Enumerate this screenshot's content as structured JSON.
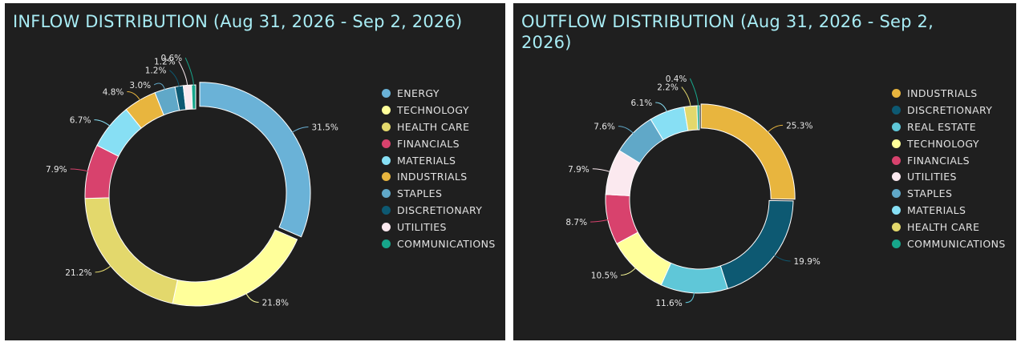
{
  "chart_data": [
    {
      "type": "pie",
      "donut": true,
      "title": "INFLOW DISTRIBUTION (Aug 31, 2026 - Sep 2, 2026)",
      "legend_position": "right",
      "slices": [
        {
          "name": "ENERGY",
          "value": 31.5,
          "label": "31.5%",
          "color": "#6ab2d7"
        },
        {
          "name": "TECHNOLOGY",
          "value": 21.8,
          "label": "21.8%",
          "color": "#ffff9a"
        },
        {
          "name": "HEALTH CARE",
          "value": 21.2,
          "label": "21.2%",
          "color": "#e3d86c"
        },
        {
          "name": "FINANCIALS",
          "value": 7.9,
          "label": "7.9%",
          "color": "#d8426d"
        },
        {
          "name": "MATERIALS",
          "value": 6.7,
          "label": "6.7%",
          "color": "#87dff4"
        },
        {
          "name": "INDUSTRIALS",
          "value": 4.8,
          "label": "4.8%",
          "color": "#e8b53e"
        },
        {
          "name": "STAPLES",
          "value": 3.0,
          "label": "3.0%",
          "color": "#60a8c8"
        },
        {
          "name": "DISCRETIONARY",
          "value": 1.2,
          "label": "1.2%",
          "color": "#0d5972"
        },
        {
          "name": "UTILITIES",
          "value": 1.2,
          "label": "1.2%",
          "color": "#fbe9ef"
        },
        {
          "name": "COMMUNICATIONS",
          "value": 0.6,
          "label": "0.6%",
          "color": "#17a68b"
        }
      ]
    },
    {
      "type": "pie",
      "donut": true,
      "title": "OUTFLOW DISTRIBUTION (Aug 31, 2026 - Sep 2, 2026)",
      "legend_position": "right",
      "slices": [
        {
          "name": "INDUSTRIALS",
          "value": 25.3,
          "label": "25.3%",
          "color": "#e8b53e"
        },
        {
          "name": "DISCRETIONARY",
          "value": 19.9,
          "label": "19.9%",
          "color": "#0d5972"
        },
        {
          "name": "REAL ESTATE",
          "value": 11.6,
          "label": "11.6%",
          "color": "#5fc7d8"
        },
        {
          "name": "TECHNOLOGY",
          "value": 10.5,
          "label": "10.5%",
          "color": "#ffff9a"
        },
        {
          "name": "FINANCIALS",
          "value": 8.7,
          "label": "8.7%",
          "color": "#d8426d"
        },
        {
          "name": "UTILITIES",
          "value": 7.9,
          "label": "7.9%",
          "color": "#fbe9ef"
        },
        {
          "name": "STAPLES",
          "value": 7.6,
          "label": "7.6%",
          "color": "#60a8c8"
        },
        {
          "name": "MATERIALS",
          "value": 6.1,
          "label": "6.1%",
          "color": "#87dff4"
        },
        {
          "name": "HEALTH CARE",
          "value": 2.2,
          "label": "2.2%",
          "color": "#e3d86c"
        },
        {
          "name": "COMMUNICATIONS",
          "value": 0.4,
          "label": "0.4%",
          "color": "#17a68b"
        }
      ]
    }
  ]
}
